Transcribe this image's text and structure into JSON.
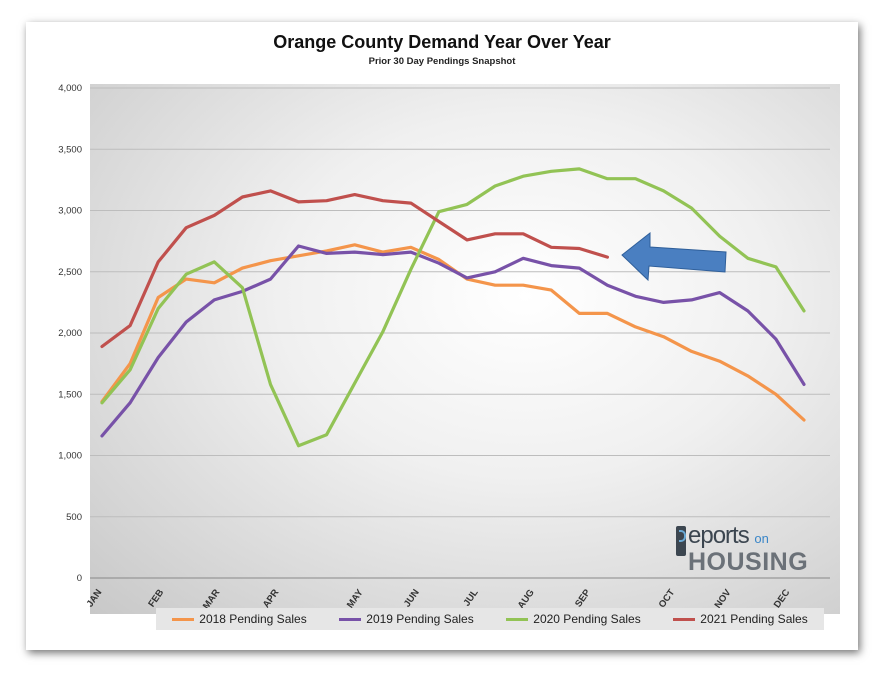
{
  "chart_data": {
    "type": "line",
    "title": "Orange County Demand Year Over Year",
    "subtitle": "Prior 30 Day Pendings Snapshot",
    "xlabel": "",
    "ylabel": "",
    "ylim": [
      0,
      4000
    ],
    "yticks": [
      "0",
      "500",
      "1,000",
      "1,500",
      "2,000",
      "2,500",
      "3,000",
      "3,500",
      "4,000"
    ],
    "ytick_values": [
      0,
      500,
      1000,
      1500,
      2000,
      2500,
      3000,
      3500,
      4000
    ],
    "month_labels": [
      "JAN",
      "FEB",
      "MAR",
      "APR",
      "MAY",
      "JUN",
      "JUL",
      "AUG",
      "SEP",
      "OCT",
      "NOV",
      "DEC"
    ],
    "month_positions": [
      0,
      2.2,
      4.2,
      6.3,
      9.3,
      11.3,
      13.4,
      15.4,
      17.4,
      20.4,
      22.4,
      24.5
    ],
    "x_max": 26.5,
    "grid": true,
    "legend_position": "bottom",
    "series": [
      {
        "name": "2018 Pending Sales",
        "color": "#f4954b",
        "values": [
          1440,
          1750,
          2290,
          2440,
          2410,
          2530,
          2590,
          2630,
          2670,
          2720,
          2660,
          2700,
          2600,
          2440,
          2390,
          2390,
          2350,
          2160,
          2160,
          2050,
          1970,
          1850,
          1770,
          1650,
          1500,
          1290
        ]
      },
      {
        "name": "2019 Pending Sales",
        "color": "#7852a8",
        "values": [
          1160,
          1430,
          1800,
          2090,
          2270,
          2340,
          2440,
          2710,
          2650,
          2660,
          2640,
          2660,
          2570,
          2450,
          2500,
          2610,
          2550,
          2530,
          2390,
          2300,
          2250,
          2270,
          2330,
          2180,
          1950,
          1580
        ]
      },
      {
        "name": "2020 Pending Sales",
        "color": "#92c355",
        "values": [
          1430,
          1700,
          2200,
          2480,
          2580,
          2370,
          1580,
          1080,
          1170,
          1590,
          2010,
          2520,
          2990,
          3050,
          3200,
          3280,
          3320,
          3340,
          3260,
          3260,
          3160,
          3020,
          2790,
          2610,
          2540,
          2180
        ]
      },
      {
        "name": "2021 Pending Sales",
        "color": "#c0504d",
        "values": [
          1890,
          2060,
          2580,
          2860,
          2960,
          3110,
          3160,
          3070,
          3080,
          3130,
          3080,
          3060,
          2910,
          2760,
          2810,
          2810,
          2700,
          2690,
          2620
        ]
      }
    ],
    "annotation": {
      "type": "arrow",
      "color": "#4a7fc1",
      "points_to": "2021 Pending Sales"
    }
  },
  "logo": {
    "word1": "eports",
    "word2": "on",
    "word3": "HOUSING",
    "icon": "reports-on-housing-logo-icon"
  }
}
